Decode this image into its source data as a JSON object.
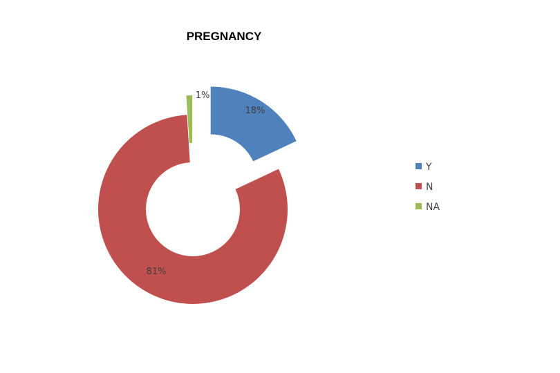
{
  "chart_data": {
    "type": "pie",
    "subtype": "doughnut-exploded",
    "title": "PREGNANCY",
    "categories": [
      "Y",
      "N",
      "NA"
    ],
    "values": [
      18,
      81,
      1
    ],
    "labels": [
      "18%",
      "81%",
      "1%"
    ],
    "colors": [
      "#4F81BD",
      "#C0504D",
      "#9BBB59"
    ],
    "legend": {
      "position": "right",
      "entries": [
        "Y",
        "N",
        "NA"
      ]
    }
  }
}
